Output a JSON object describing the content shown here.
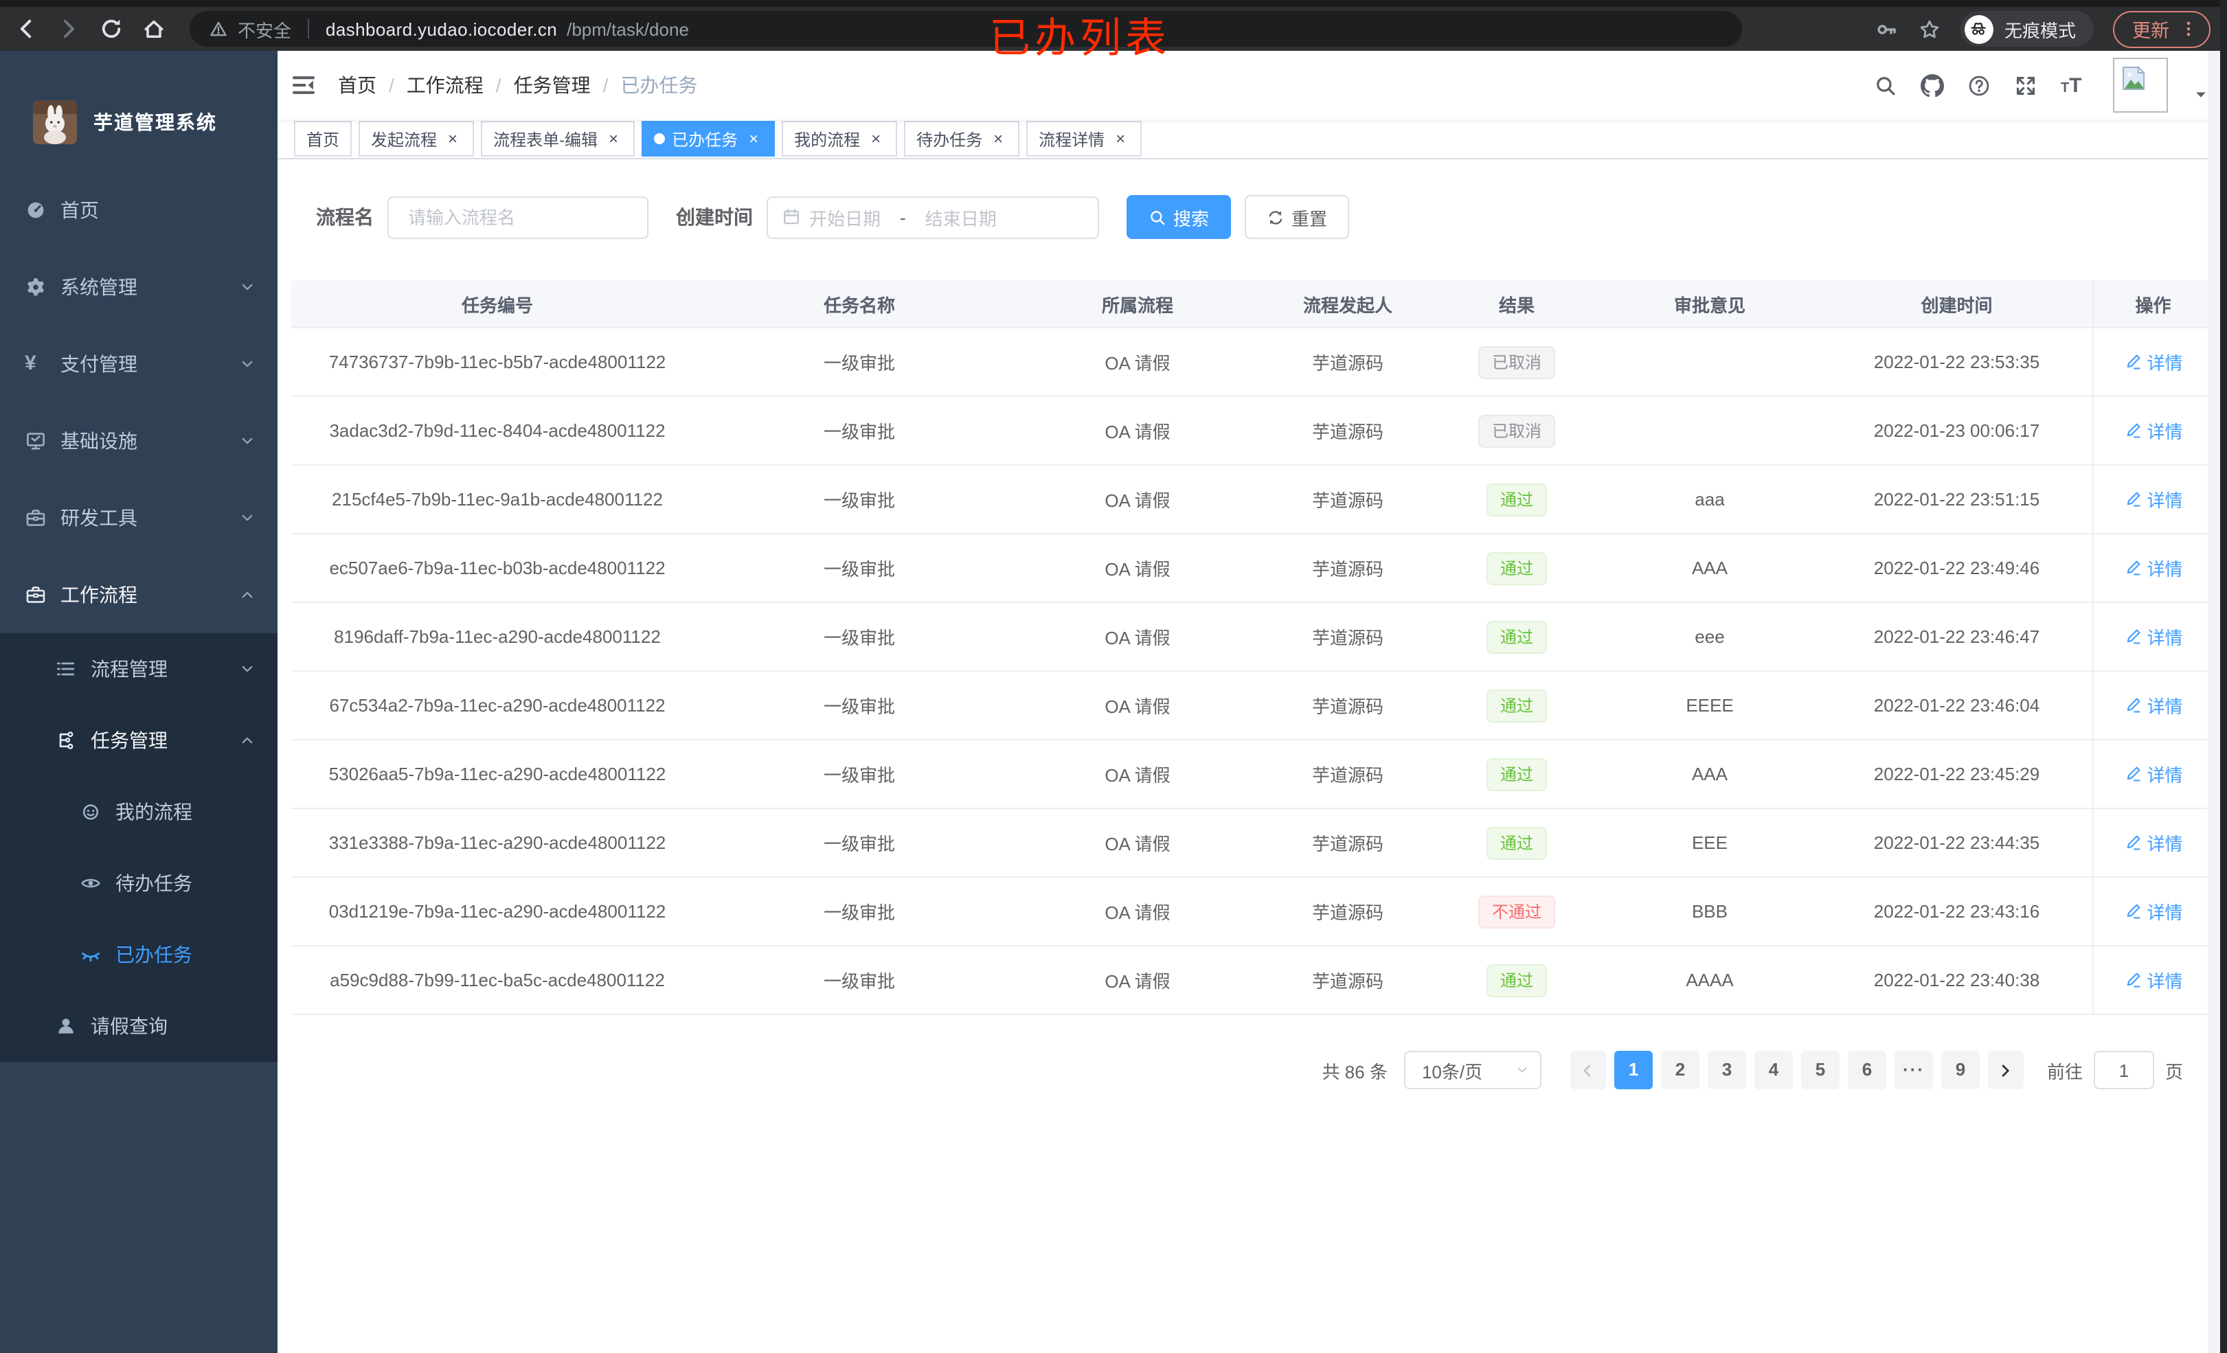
{
  "annotation": {
    "label": "已办列表",
    "color": "#fe2b00"
  },
  "chrome": {
    "nav_icons": [
      {
        "icon": "back",
        "state": ""
      },
      {
        "icon": "forward",
        "state": "dim"
      },
      {
        "icon": "reload",
        "state": ""
      },
      {
        "icon": "home",
        "state": ""
      }
    ],
    "security_icon": "warning",
    "security_label": "不安全",
    "url_host": "dashboard.yudao.iocoder.cn",
    "url_path": "/bpm/task/done",
    "action_icons": [
      {
        "icon": "key"
      },
      {
        "icon": "star"
      }
    ],
    "incognito": {
      "icon": "incognito",
      "label": "无痕模式"
    },
    "update": {
      "label": "更新",
      "menu_icon": "dots-v",
      "color": "#e68d81"
    }
  },
  "sidebar": {
    "logo_title": "芋道管理系统",
    "logo_icon": "rabbit-logo",
    "items": [
      {
        "label": "首页",
        "icon": "dashboard",
        "lv": "1",
        "zone": "light",
        "chev": "",
        "state": ""
      },
      {
        "label": "系统管理",
        "icon": "gear",
        "lv": "1",
        "zone": "light",
        "chev": "chev-down",
        "state": ""
      },
      {
        "label": "支付管理",
        "icon": "yen",
        "lv": "1",
        "zone": "light",
        "chev": "chev-down",
        "state": ""
      },
      {
        "label": "基础设施",
        "icon": "monitor",
        "lv": "1",
        "zone": "light",
        "chev": "chev-down",
        "state": ""
      },
      {
        "label": "研发工具",
        "icon": "toolbox",
        "lv": "1",
        "zone": "light",
        "chev": "chev-down",
        "state": ""
      },
      {
        "label": "工作流程",
        "icon": "briefcase",
        "lv": "1",
        "zone": "light",
        "chev": "chev-up",
        "state": "open"
      },
      {
        "label": "流程管理",
        "icon": "tree",
        "lv": "2",
        "zone": "dark",
        "chev": "chev-down",
        "state": ""
      },
      {
        "label": "任务管理",
        "icon": "flow",
        "lv": "2",
        "zone": "dark",
        "chev": "chev-up",
        "state": "open"
      },
      {
        "label": "我的流程",
        "icon": "robot",
        "lv": "3",
        "zone": "dark",
        "chev": "",
        "state": ""
      },
      {
        "label": "待办任务",
        "icon": "eye",
        "lv": "3",
        "zone": "dark",
        "chev": "",
        "state": ""
      },
      {
        "label": "已办任务",
        "icon": "eye-closed",
        "lv": "3",
        "zone": "dark",
        "chev": "",
        "state": "active"
      },
      {
        "label": "请假查询",
        "icon": "user",
        "lv": "2",
        "zone": "dark",
        "chev": "",
        "state": ""
      }
    ]
  },
  "navbar": {
    "hamburger_icon": "hamburger",
    "separator": "/",
    "breadcrumb": [
      {
        "label": "首页",
        "state": ""
      },
      {
        "label": "工作流程",
        "state": ""
      },
      {
        "label": "任务管理",
        "state": ""
      },
      {
        "label": "已办任务",
        "state": "current"
      }
    ],
    "right_icons": [
      {
        "icon": "search"
      },
      {
        "icon": "github"
      },
      {
        "icon": "question"
      },
      {
        "icon": "fullscreen"
      },
      {
        "icon": "textsize"
      }
    ],
    "avatar_icon": "broken-image",
    "caret_icon": "caret-down"
  },
  "tabs": [
    {
      "label": "首页",
      "close": "",
      "state": ""
    },
    {
      "label": "发起流程",
      "close": "×",
      "state": ""
    },
    {
      "label": "流程表单-编辑",
      "close": "×",
      "state": ""
    },
    {
      "label": "已办任务",
      "close": "×",
      "state": "active"
    },
    {
      "label": "我的流程",
      "close": "×",
      "state": ""
    },
    {
      "label": "待办任务",
      "close": "×",
      "state": ""
    },
    {
      "label": "流程详情",
      "close": "×",
      "state": ""
    }
  ],
  "filters": {
    "name_label": "流程名",
    "name_placeholder": "请输入流程名",
    "time_label": "创建时间",
    "calendar_icon": "calendar",
    "start_placeholder": "开始日期",
    "range_separator": "-",
    "end_placeholder": "结束日期",
    "search_label": "搜索",
    "search_icon": "search",
    "reset_label": "重置",
    "reset_icon": "refresh"
  },
  "table": {
    "columns": [
      {
        "label": "任务编号"
      },
      {
        "label": "任务名称"
      },
      {
        "label": "所属流程"
      },
      {
        "label": "流程发起人"
      },
      {
        "label": "结果"
      },
      {
        "label": "审批意见"
      },
      {
        "label": "创建时间"
      },
      {
        "label": "操作"
      }
    ],
    "rows": [
      {
        "id": "74736737-7b9b-11ec-b5b7-acde48001122",
        "name": "一级审批",
        "process": "OA 请假",
        "starter": "芋道源码",
        "result": "已取消",
        "rtype": "info",
        "comment": "",
        "time": "2022-01-22 23:53:35",
        "action": "详情"
      },
      {
        "id": "3adac3d2-7b9d-11ec-8404-acde48001122",
        "name": "一级审批",
        "process": "OA 请假",
        "starter": "芋道源码",
        "result": "已取消",
        "rtype": "info",
        "comment": "",
        "time": "2022-01-23 00:06:17",
        "action": "详情"
      },
      {
        "id": "215cf4e5-7b9b-11ec-9a1b-acde48001122",
        "name": "一级审批",
        "process": "OA 请假",
        "starter": "芋道源码",
        "result": "通过",
        "rtype": "success",
        "comment": "aaa",
        "time": "2022-01-22 23:51:15",
        "action": "详情"
      },
      {
        "id": "ec507ae6-7b9a-11ec-b03b-acde48001122",
        "name": "一级审批",
        "process": "OA 请假",
        "starter": "芋道源码",
        "result": "通过",
        "rtype": "success",
        "comment": "AAA",
        "time": "2022-01-22 23:49:46",
        "action": "详情"
      },
      {
        "id": "8196daff-7b9a-11ec-a290-acde48001122",
        "name": "一级审批",
        "process": "OA 请假",
        "starter": "芋道源码",
        "result": "通过",
        "rtype": "success",
        "comment": "eee",
        "time": "2022-01-22 23:46:47",
        "action": "详情"
      },
      {
        "id": "67c534a2-7b9a-11ec-a290-acde48001122",
        "name": "一级审批",
        "process": "OA 请假",
        "starter": "芋道源码",
        "result": "通过",
        "rtype": "success",
        "comment": "EEEE",
        "time": "2022-01-22 23:46:04",
        "action": "详情"
      },
      {
        "id": "53026aa5-7b9a-11ec-a290-acde48001122",
        "name": "一级审批",
        "process": "OA 请假",
        "starter": "芋道源码",
        "result": "通过",
        "rtype": "success",
        "comment": "AAA",
        "time": "2022-01-22 23:45:29",
        "action": "详情"
      },
      {
        "id": "331e3388-7b9a-11ec-a290-acde48001122",
        "name": "一级审批",
        "process": "OA 请假",
        "starter": "芋道源码",
        "result": "通过",
        "rtype": "success",
        "comment": "EEE",
        "time": "2022-01-22 23:44:35",
        "action": "详情"
      },
      {
        "id": "03d1219e-7b9a-11ec-a290-acde48001122",
        "name": "一级审批",
        "process": "OA 请假",
        "starter": "芋道源码",
        "result": "不通过",
        "rtype": "danger",
        "comment": "BBB",
        "time": "2022-01-22 23:43:16",
        "action": "详情"
      },
      {
        "id": "a59c9d88-7b99-11ec-ba5c-acde48001122",
        "name": "一级审批",
        "process": "OA 请假",
        "starter": "芋道源码",
        "result": "通过",
        "rtype": "success",
        "comment": "AAAA",
        "time": "2022-01-22 23:40:38",
        "action": "详情"
      }
    ]
  },
  "pagination": {
    "total": "共 86 条",
    "page_size": "10条/页",
    "prev_icon": "pg-prev",
    "next_icon": "pg-next",
    "pages": [
      {
        "label": "1",
        "state": "active"
      },
      {
        "label": "2",
        "state": ""
      },
      {
        "label": "3",
        "state": ""
      },
      {
        "label": "4",
        "state": ""
      },
      {
        "label": "5",
        "state": ""
      },
      {
        "label": "6",
        "state": ""
      },
      {
        "label": "···",
        "state": "more"
      },
      {
        "label": "9",
        "state": ""
      }
    ],
    "goto_label": "前往",
    "goto_value": "1",
    "unit_label": "页"
  }
}
